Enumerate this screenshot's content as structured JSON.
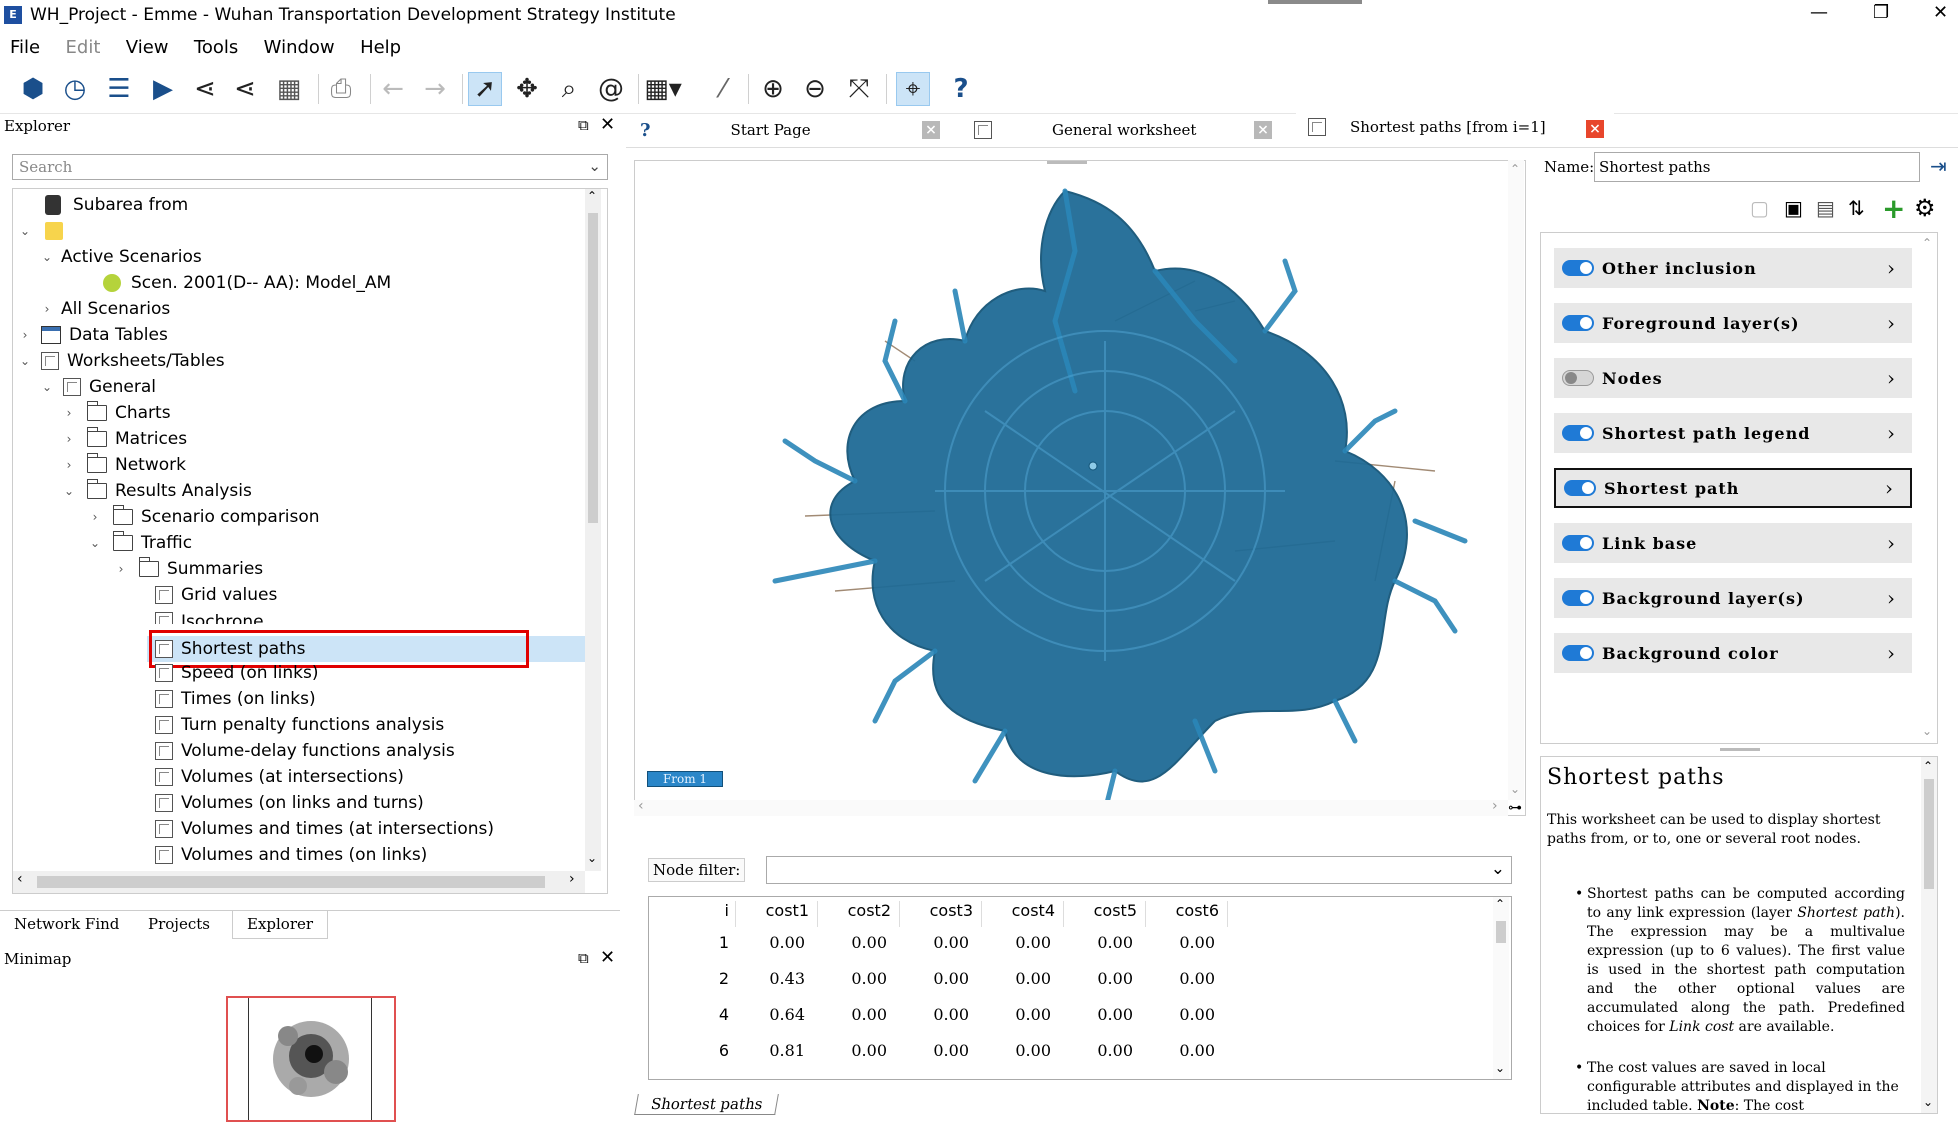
{
  "window": {
    "title": "WH_Project - Emme - Wuhan Transportation Development Strategy Institute",
    "controls": {
      "minimize": "—",
      "restore": "❐",
      "close": "✕"
    }
  },
  "menu": [
    "File",
    "Edit",
    "View",
    "Tools",
    "Window",
    "Help"
  ],
  "explorer": {
    "header": "Explorer",
    "search_placeholder": "Search",
    "tree": [
      {
        "label": "Subarea from",
        "icon": "database"
      },
      {
        "label": "",
        "icon": "folder-yellow"
      },
      {
        "label": "Active Scenarios"
      },
      {
        "label": "Scen. 2001(D-- AA): Model_AM"
      },
      {
        "label": "All Scenarios"
      },
      {
        "label": "Data Tables"
      },
      {
        "label": "Worksheets/Tables"
      },
      {
        "label": "General"
      },
      {
        "label": "Charts"
      },
      {
        "label": "Matrices"
      },
      {
        "label": "Network"
      },
      {
        "label": "Results Analysis"
      },
      {
        "label": "Scenario comparison"
      },
      {
        "label": "Traffic"
      },
      {
        "label": "Summaries"
      },
      {
        "label": "Grid values"
      },
      {
        "label": "Isochrone"
      },
      {
        "label": "Shortest paths"
      },
      {
        "label": "Speed (on links)"
      },
      {
        "label": "Times (on links)"
      },
      {
        "label": "Turn penalty functions analysis"
      },
      {
        "label": "Volume-delay functions analysis"
      },
      {
        "label": "Volumes (at intersections)"
      },
      {
        "label": "Volumes (on links and turns)"
      },
      {
        "label": "Volumes and times (at intersections)"
      },
      {
        "label": "Volumes and times (on links)"
      }
    ],
    "bottom_tabs": [
      "Network Find",
      "Projects",
      "Explorer"
    ]
  },
  "minimap": {
    "header": "Minimap"
  },
  "doc_tabs": [
    {
      "label": "Start Page"
    },
    {
      "label": "General worksheet"
    },
    {
      "label": "Shortest paths [from i=1]"
    }
  ],
  "map": {
    "from_label": "From 1"
  },
  "node_filter": {
    "label": "Node filter:",
    "value": ""
  },
  "results_table": {
    "columns": [
      "i",
      "cost1",
      "cost2",
      "cost3",
      "cost4",
      "cost5",
      "cost6"
    ],
    "rows": [
      [
        "1",
        "0.00",
        "0.00",
        "0.00",
        "0.00",
        "0.00",
        "0.00"
      ],
      [
        "2",
        "0.43",
        "0.00",
        "0.00",
        "0.00",
        "0.00",
        "0.00"
      ],
      [
        "4",
        "0.64",
        "0.00",
        "0.00",
        "0.00",
        "0.00",
        "0.00"
      ],
      [
        "6",
        "0.81",
        "0.00",
        "0.00",
        "0.00",
        "0.00",
        "0.00"
      ]
    ],
    "sheet_tab": "Shortest paths"
  },
  "worksheet": {
    "name_label": "Name:",
    "name_value": "Shortest paths",
    "layers": [
      {
        "label": "Other inclusion",
        "on": true
      },
      {
        "label": "Foreground layer(s)",
        "on": true
      },
      {
        "label": "Nodes",
        "on": false
      },
      {
        "label": "Shortest path legend",
        "on": true
      },
      {
        "label": "Shortest path",
        "on": true,
        "selected": true
      },
      {
        "label": "Link base",
        "on": true
      },
      {
        "label": "Background layer(s)",
        "on": true
      },
      {
        "label": "Background color",
        "on": true
      }
    ]
  },
  "help": {
    "title": "Shortest paths",
    "intro": "This worksheet can be used to display shortest paths from, or to, one or several root nodes.",
    "bullet1_a": "Shortest paths can be computed according to any link expression (layer ",
    "bullet1_em": "Shortest path",
    "bullet1_b": "). The expression may be a multivalue expression (up to 6 values). The first value is used in the shortest path computation and the other optional values are accumulated along the path. Predefined choices for ",
    "bullet1_em2": "Link cost",
    "bullet1_c": " are available.",
    "bullet2_a": "The cost values are saved in local configurable attributes and displayed in the included table. ",
    "bullet2_note": "Note",
    "bullet2_b": ": The cost"
  },
  "colors": {
    "network": "#1f6b96",
    "highlight": "#e00000",
    "toggle_on": "#1f7ad6",
    "selection": "#cce4f7"
  }
}
